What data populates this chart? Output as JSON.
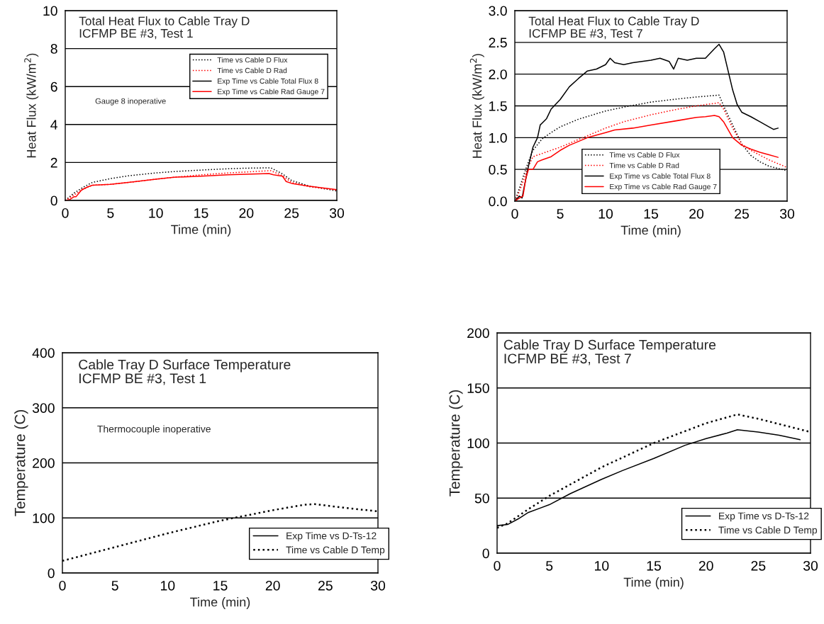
{
  "chart_data": [
    {
      "type": "line",
      "title": "Total Heat Flux to Cable Tray D\nICFMP BE #3, Test 1",
      "xlabel": "Time (min)",
      "ylabel": "Heat Flux (kW/m$^{2}$)",
      "xlim": [
        0,
        30
      ],
      "ylim": [
        0,
        10
      ],
      "xticks": [
        0,
        5,
        10,
        15,
        20,
        25,
        30
      ],
      "yticks": [
        0,
        2,
        4,
        6,
        8,
        10
      ],
      "grid": "y",
      "legend": "top right",
      "annotations": [
        "Gauge 8 inoperative"
      ],
      "series": [
        {
          "name": "Time vs Cable D Flux",
          "color": "#000000",
          "line_style": "dotted",
          "x": [
            0,
            1,
            2,
            3,
            5,
            7,
            10,
            12,
            15,
            18,
            20,
            22.7,
            24,
            25,
            27,
            30
          ],
          "values": [
            0,
            0.4,
            0.7,
            0.95,
            1.15,
            1.3,
            1.45,
            1.52,
            1.6,
            1.67,
            1.7,
            1.72,
            1.4,
            1.05,
            0.75,
            0.5
          ]
        },
        {
          "name": "Time vs Cable D Rad",
          "color": "#ff0000",
          "line_style": "dotted",
          "x": [
            0,
            1,
            2,
            3,
            5,
            8,
            10,
            12,
            15,
            18,
            20,
            22.7,
            24,
            25,
            27,
            30
          ],
          "values": [
            0,
            0.3,
            0.6,
            0.8,
            0.85,
            1.0,
            1.12,
            1.22,
            1.35,
            1.45,
            1.5,
            1.57,
            1.3,
            0.95,
            0.72,
            0.55
          ]
        },
        {
          "name": "Exp Time vs Cable Total Flux 8",
          "color": "#000000",
          "line_style": "solid"
        },
        {
          "name": "Exp Time vs Cable Rad Gauge 7",
          "color": "#ff0000",
          "line_style": "solid",
          "x": [
            0,
            0.5,
            1,
            1.2,
            1.8,
            2.5,
            3,
            5,
            7,
            10,
            12,
            15,
            18,
            20,
            22.5,
            23,
            24,
            24.4,
            25,
            27,
            30
          ],
          "values": [
            0,
            0.05,
            0.2,
            0.2,
            0.55,
            0.72,
            0.8,
            0.85,
            0.95,
            1.12,
            1.22,
            1.28,
            1.35,
            1.38,
            1.42,
            1.35,
            1.28,
            1.0,
            0.9,
            0.75,
            0.57
          ]
        }
      ]
    },
    {
      "type": "line",
      "title": "Total Heat Flux to Cable Tray D\nICFMP BE #3, Test 7",
      "xlabel": "Time (min)",
      "ylabel": "Heat Flux (kW/m$^{2}$)",
      "xlim": [
        0,
        30
      ],
      "ylim": [
        0,
        3
      ],
      "xticks": [
        0,
        5,
        10,
        15,
        20,
        25,
        30
      ],
      "yticks": [
        {
          "value": 0,
          "label": "0.0"
        },
        {
          "value": 0.5,
          "label": "0.5"
        },
        {
          "value": 1,
          "label": "1.0"
        },
        {
          "value": 1.5,
          "label": "1.5"
        },
        {
          "value": 2,
          "label": "2.0"
        },
        {
          "value": 2.5,
          "label": "2.5"
        },
        {
          "value": 3,
          "label": "3.0"
        }
      ],
      "grid": "y",
      "legend": "bottom",
      "series": [
        {
          "name": "Time vs Cable D Flux",
          "color": "#000000",
          "line_style": "dotted",
          "x": [
            0,
            0.5,
            1,
            1.5,
            2,
            3,
            4,
            5,
            7,
            10,
            12,
            15,
            18,
            20,
            22.5,
            23,
            24,
            25,
            26,
            27,
            28,
            30
          ],
          "values": [
            0,
            0.2,
            0.42,
            0.62,
            0.8,
            0.98,
            1.08,
            1.17,
            1.29,
            1.42,
            1.48,
            1.56,
            1.61,
            1.64,
            1.67,
            1.5,
            1.2,
            0.9,
            0.72,
            0.62,
            0.55,
            0.48
          ]
        },
        {
          "name": "Time vs Cable D Rad",
          "color": "#ff0000",
          "line_style": "dotted",
          "x": [
            0,
            0.5,
            1,
            1.5,
            2,
            3,
            5,
            7,
            10,
            12,
            15,
            18,
            20,
            22.5,
            23,
            24,
            25,
            26,
            28,
            30
          ],
          "values": [
            0,
            0.15,
            0.35,
            0.55,
            0.7,
            0.75,
            0.85,
            0.97,
            1.15,
            1.25,
            1.36,
            1.45,
            1.5,
            1.55,
            1.45,
            1.15,
            0.9,
            0.8,
            0.65,
            0.53
          ]
        },
        {
          "name": "Exp Time vs Cable Total Flux 8",
          "color": "#000000",
          "line_style": "solid",
          "x": [
            0,
            0.5,
            0.8,
            1,
            1.5,
            2,
            2.5,
            2.8,
            3.5,
            4,
            5,
            6,
            7,
            8,
            9,
            10,
            10.5,
            11,
            12,
            13,
            14,
            15,
            16,
            17,
            17.5,
            18,
            19,
            20,
            21,
            22,
            22.5,
            23,
            23.5,
            24,
            24.5,
            25,
            26,
            27,
            28,
            28.5,
            29
          ],
          "values": [
            0,
            0.08,
            0.05,
            0.2,
            0.55,
            0.85,
            1.0,
            1.2,
            1.3,
            1.45,
            1.6,
            1.8,
            1.93,
            2.05,
            2.08,
            2.15,
            2.25,
            2.18,
            2.15,
            2.18,
            2.2,
            2.22,
            2.25,
            2.2,
            2.08,
            2.25,
            2.22,
            2.25,
            2.25,
            2.4,
            2.47,
            2.35,
            2.05,
            1.75,
            1.52,
            1.4,
            1.33,
            1.25,
            1.17,
            1.13,
            1.15
          ]
        },
        {
          "name": "Exp Time vs Cable Rad Gauge 7",
          "color": "#ff0000",
          "line_style": "solid",
          "x": [
            0,
            0.5,
            0.9,
            1.2,
            1.5,
            2,
            2.5,
            3,
            4,
            5,
            6,
            8,
            10,
            11,
            13,
            15,
            18,
            20,
            21,
            22,
            22.5,
            23,
            24,
            25,
            26,
            27,
            28,
            29
          ],
          "values": [
            0,
            0.05,
            0.08,
            0.35,
            0.5,
            0.5,
            0.62,
            0.65,
            0.7,
            0.8,
            0.88,
            1.0,
            1.08,
            1.12,
            1.15,
            1.2,
            1.27,
            1.32,
            1.33,
            1.35,
            1.33,
            1.25,
            1.0,
            0.88,
            0.82,
            0.77,
            0.73,
            0.69
          ]
        }
      ]
    },
    {
      "type": "line",
      "title": "Cable Tray D Surface Temperature\nICFMP BE #3, Test 1",
      "xlabel": "Time (min)",
      "ylabel": "Temperature (C)",
      "xlim": [
        0,
        30
      ],
      "ylim": [
        0,
        400
      ],
      "xticks": [
        0,
        5,
        10,
        15,
        20,
        25,
        30
      ],
      "yticks": [
        0,
        100,
        200,
        300,
        400
      ],
      "grid": "y",
      "legend": "bottom right",
      "annotations": [
        "Thermocouple inoperative"
      ],
      "series": [
        {
          "name": "Exp Time vs D-Ts-12",
          "color": "#000000",
          "line_style": "solid"
        },
        {
          "name": "Time vs Cable D Temp",
          "color": "#000000",
          "line_style": "dotted",
          "x": [
            0,
            5,
            10,
            15,
            20,
            23,
            24,
            27,
            30
          ],
          "values": [
            22,
            47,
            72,
            95,
            114,
            124,
            125,
            118,
            112
          ]
        }
      ]
    },
    {
      "type": "line",
      "title": "Cable Tray D Surface Temperature\nICFMP BE #3, Test 7",
      "xlabel": "Time (min)",
      "ylabel": "Temperature (C)",
      "xlim": [
        0,
        30
      ],
      "ylim": [
        0,
        200
      ],
      "xticks": [
        0,
        5,
        10,
        15,
        20,
        25,
        30
      ],
      "yticks": [
        0,
        50,
        100,
        150,
        200
      ],
      "grid": "y",
      "legend": "bottom right",
      "series": [
        {
          "name": "Exp Time vs D-Ts-12",
          "color": "#000000",
          "line_style": "solid",
          "x": [
            0,
            1,
            2,
            3,
            5,
            7,
            10,
            12,
            15,
            18,
            20,
            22,
            23,
            25,
            27,
            29
          ],
          "values": [
            25,
            26,
            31,
            37,
            44,
            54,
            67,
            75,
            86,
            98,
            104,
            109,
            112,
            110,
            107,
            103
          ]
        },
        {
          "name": "Time vs Cable D Temp",
          "color": "#000000",
          "line_style": "dotted",
          "x": [
            0,
            1,
            3,
            5,
            10,
            15,
            20,
            23,
            25,
            30
          ],
          "values": [
            23,
            27,
            40,
            52,
            78,
            100,
            118,
            126,
            122,
            110
          ]
        }
      ]
    }
  ]
}
